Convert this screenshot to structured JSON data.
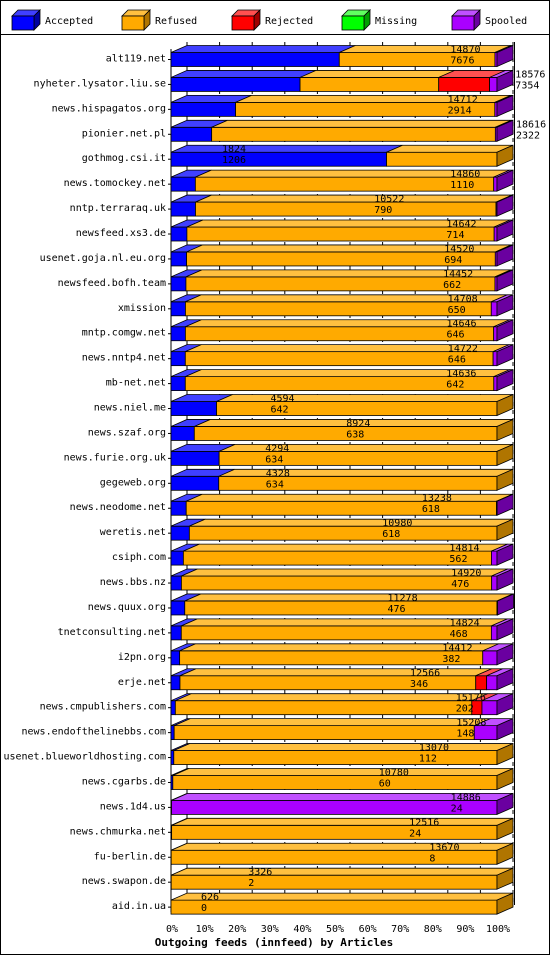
{
  "chart_data": {
    "type": "bar",
    "orientation": "horizontal",
    "stacked": true,
    "title": "Outgoing feeds (innfeed) by Articles",
    "xlabel": "Outgoing feeds (innfeed) by Articles",
    "ylabel": "",
    "xlim": [
      0,
      100
    ],
    "unit": "%",
    "grid": true,
    "legend_position": "top",
    "x_ticks": [
      "0%",
      "10%",
      "20%",
      "30%",
      "40%",
      "50%",
      "60%",
      "70%",
      "80%",
      "90%",
      "100%"
    ],
    "series": [
      {
        "name": "Accepted",
        "color": "#0000ff",
        "side": "#0000a0",
        "top": "#4040ff"
      },
      {
        "name": "Refused",
        "color": "#ffaa00",
        "side": "#b07500",
        "top": "#ffc040"
      },
      {
        "name": "Rejected",
        "color": "#ff0000",
        "side": "#a00000",
        "top": "#ff5050"
      },
      {
        "name": "Missing",
        "color": "#00ff00",
        "side": "#00a000",
        "top": "#60ff60"
      },
      {
        "name": "Spooled",
        "color": "#aa00ff",
        "side": "#6a00a0",
        "top": "#c050ff"
      }
    ],
    "rows": [
      {
        "name": "alt119.net",
        "offered": "14870",
        "accepted": "7676",
        "segments": [
          7676,
          7100,
          0,
          0,
          94
        ]
      },
      {
        "name": "nyheter.lysator.liu.se",
        "offered": "18576",
        "accepted": "7354",
        "segments": [
          7354,
          7900,
          2900,
          0,
          422
        ]
      },
      {
        "name": "news.hispagatos.org",
        "offered": "14712",
        "accepted": "2914",
        "segments": [
          2914,
          11700,
          0,
          0,
          98
        ]
      },
      {
        "name": "pionier.net.pl",
        "offered": "18616",
        "accepted": "2322",
        "segments": [
          2322,
          16200,
          0,
          0,
          94
        ]
      },
      {
        "name": "gothmog.csi.it",
        "offered": "1824",
        "accepted": "1206",
        "segments": [
          1206,
          618,
          0,
          0,
          0
        ]
      },
      {
        "name": "news.tomockey.net",
        "offered": "14860",
        "accepted": "1110",
        "segments": [
          1110,
          13600,
          0,
          0,
          150
        ]
      },
      {
        "name": "nntp.terraraq.uk",
        "offered": "10522",
        "accepted": "790",
        "segments": [
          790,
          9700,
          0,
          0,
          32
        ]
      },
      {
        "name": "newsfeed.xs3.de",
        "offered": "14642",
        "accepted": "714",
        "segments": [
          714,
          13800,
          0,
          0,
          128
        ]
      },
      {
        "name": "usenet.goja.nl.eu.org",
        "offered": "14520",
        "accepted": "694",
        "segments": [
          694,
          13750,
          0,
          0,
          76
        ]
      },
      {
        "name": "newsfeed.bofh.team",
        "offered": "14452",
        "accepted": "662",
        "segments": [
          662,
          13700,
          0,
          0,
          90
        ]
      },
      {
        "name": "xmission",
        "offered": "14708",
        "accepted": "650",
        "segments": [
          650,
          13800,
          0,
          0,
          258
        ]
      },
      {
        "name": "mntp.comgw.net",
        "offered": "14646",
        "accepted": "646",
        "segments": [
          646,
          13850,
          0,
          0,
          150
        ]
      },
      {
        "name": "news.nntp4.net",
        "offered": "14722",
        "accepted": "646",
        "segments": [
          646,
          13900,
          0,
          0,
          176
        ]
      },
      {
        "name": "mb-net.net",
        "offered": "14636",
        "accepted": "642",
        "segments": [
          642,
          13850,
          0,
          0,
          144
        ]
      },
      {
        "name": "news.niel.me",
        "offered": "4594",
        "accepted": "642",
        "segments": [
          642,
          3952,
          0,
          0,
          0
        ]
      },
      {
        "name": "news.szaf.org",
        "offered": "8924",
        "accepted": "638",
        "segments": [
          638,
          8286,
          0,
          0,
          0
        ]
      },
      {
        "name": "news.furie.org.uk",
        "offered": "4294",
        "accepted": "634",
        "segments": [
          634,
          3660,
          0,
          0,
          0
        ]
      },
      {
        "name": "gegeweb.org",
        "offered": "4328",
        "accepted": "634",
        "segments": [
          634,
          3694,
          0,
          0,
          0
        ]
      },
      {
        "name": "news.neodome.net",
        "offered": "13238",
        "accepted": "618",
        "segments": [
          618,
          12600,
          0,
          0,
          20
        ]
      },
      {
        "name": "weretis.net",
        "offered": "10980",
        "accepted": "618",
        "segments": [
          618,
          10362,
          0,
          0,
          0
        ]
      },
      {
        "name": "csiph.com",
        "offered": "14814",
        "accepted": "562",
        "segments": [
          562,
          14000,
          0,
          0,
          252
        ]
      },
      {
        "name": "news.bbs.nz",
        "offered": "14920",
        "accepted": "476",
        "segments": [
          476,
          14200,
          0,
          0,
          244
        ]
      },
      {
        "name": "news.quux.org",
        "offered": "11278",
        "accepted": "476",
        "segments": [
          476,
          10800,
          0,
          0,
          2
        ]
      },
      {
        "name": "tnetconsulting.net",
        "offered": "14824",
        "accepted": "468",
        "segments": [
          468,
          14100,
          0,
          0,
          256
        ]
      },
      {
        "name": "i2pn.org",
        "offered": "14412",
        "accepted": "382",
        "segments": [
          382,
          13400,
          0,
          0,
          630
        ]
      },
      {
        "name": "erje.net",
        "offered": "12566",
        "accepted": "346",
        "segments": [
          346,
          11400,
          420,
          0,
          400
        ]
      },
      {
        "name": "news.cmpublishers.com",
        "offered": "15176",
        "accepted": "202",
        "segments": [
          202,
          13800,
          474,
          0,
          700
        ]
      },
      {
        "name": "news.endofthelinebbs.com",
        "offered": "15208",
        "accepted": "148",
        "segments": [
          148,
          14000,
          0,
          0,
          1060
        ]
      },
      {
        "name": "usenet.blueworldhosting.com",
        "offered": "13070",
        "accepted": "112",
        "segments": [
          112,
          12958,
          0,
          0,
          0
        ]
      },
      {
        "name": "news.cgarbs.de",
        "offered": "10780",
        "accepted": "60",
        "segments": [
          60,
          10720,
          0,
          0,
          0
        ]
      },
      {
        "name": "news.1d4.us",
        "offered": "14886",
        "accepted": "24",
        "segments": [
          24,
          0,
          0,
          0,
          14862
        ]
      },
      {
        "name": "news.chmurka.net",
        "offered": "12516",
        "accepted": "24",
        "segments": [
          24,
          12492,
          0,
          0,
          0
        ]
      },
      {
        "name": "fu-berlin.de",
        "offered": "13670",
        "accepted": "8",
        "segments": [
          8,
          13662,
          0,
          0,
          0
        ]
      },
      {
        "name": "news.swapon.de",
        "offered": "3326",
        "accepted": "2",
        "segments": [
          2,
          3324,
          0,
          0,
          0
        ]
      },
      {
        "name": "aid.in.ua",
        "offered": "626",
        "accepted": "0",
        "segments": [
          0,
          626,
          0,
          0,
          0
        ]
      }
    ]
  }
}
